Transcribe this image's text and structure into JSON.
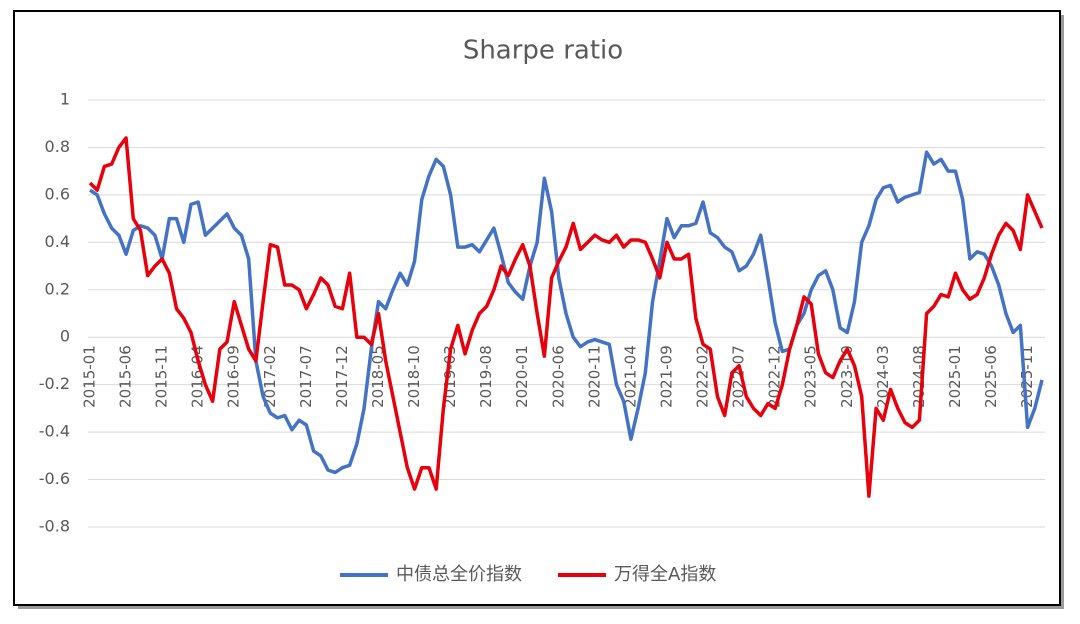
{
  "chart_data": {
    "type": "line",
    "title": "Sharpe ratio",
    "categories": [
      "2015-01",
      null,
      null,
      null,
      null,
      "2015-06",
      null,
      null,
      null,
      null,
      "2015-11",
      null,
      null,
      null,
      null,
      "2016-04",
      null,
      null,
      null,
      null,
      "2016-09",
      null,
      null,
      null,
      null,
      "2017-02",
      null,
      null,
      null,
      null,
      "2017-07",
      null,
      null,
      null,
      null,
      "2017-12",
      null,
      null,
      null,
      null,
      "2018-05",
      null,
      null,
      null,
      null,
      "2018-10",
      null,
      null,
      null,
      null,
      "2019-03",
      null,
      null,
      null,
      null,
      "2019-08",
      null,
      null,
      null,
      null,
      "2020-01",
      null,
      null,
      null,
      null,
      "2020-06",
      null,
      null,
      null,
      null,
      "2020-11",
      null,
      null,
      null,
      null,
      "2021-04",
      null,
      null,
      null,
      null,
      "2021-09",
      null,
      null,
      null,
      null,
      "2022-02",
      null,
      null,
      null,
      null,
      "2022-07",
      null,
      null,
      null,
      null,
      "2022-12",
      null,
      null,
      null,
      null,
      "2023-05",
      null,
      null,
      null,
      null,
      "2023-10",
      null,
      null,
      null,
      null,
      "2024-03",
      null,
      null,
      null,
      null,
      "2024-08",
      null,
      null,
      null,
      null,
      "2025-01",
      null,
      null,
      null,
      null,
      "2025-06",
      null,
      null,
      null,
      null,
      "2025-11",
      null,
      null
    ],
    "series": [
      {
        "name": "中债总全价指数",
        "color": "#4472c4",
        "values": [
          0.62,
          0.6,
          0.52,
          0.46,
          0.43,
          0.35,
          0.45,
          0.47,
          0.46,
          0.43,
          0.33,
          0.5,
          0.5,
          0.4,
          0.56,
          0.57,
          0.43,
          0.46,
          0.49,
          0.52,
          0.46,
          0.43,
          0.33,
          -0.1,
          -0.25,
          -0.32,
          -0.34,
          -0.33,
          -0.39,
          -0.35,
          -0.37,
          -0.48,
          -0.5,
          -0.56,
          -0.57,
          -0.55,
          -0.54,
          -0.45,
          -0.3,
          -0.05,
          0.15,
          0.12,
          0.2,
          0.27,
          0.22,
          0.32,
          0.58,
          0.68,
          0.75,
          0.72,
          0.6,
          0.38,
          0.38,
          0.39,
          0.36,
          0.41,
          0.46,
          0.35,
          0.23,
          0.19,
          0.16,
          0.3,
          0.4,
          0.67,
          0.53,
          0.25,
          0.1,
          0,
          -0.04,
          -0.02,
          -0.01,
          -0.02,
          -0.03,
          -0.2,
          -0.27,
          -0.43,
          -0.3,
          -0.15,
          0.15,
          0.32,
          0.5,
          0.42,
          0.47,
          0.47,
          0.48,
          0.57,
          0.44,
          0.42,
          0.38,
          0.36,
          0.28,
          0.3,
          0.35,
          0.43,
          0.25,
          0.06,
          -0.06,
          -0.05,
          0.05,
          0.1,
          0.2,
          0.26,
          0.28,
          0.2,
          0.04,
          0.02,
          0.15,
          0.4,
          0.47,
          0.58,
          0.63,
          0.64,
          0.57,
          0.59,
          0.6,
          0.61,
          0.78,
          0.73,
          0.75,
          0.7,
          0.7,
          0.58,
          0.33,
          0.36,
          0.35,
          0.3,
          0.22,
          0.1,
          0.02,
          0.05,
          -0.38,
          -0.3,
          -0.18
        ]
      },
      {
        "name": "万得全A指数",
        "color": "#e8000b",
        "values": [
          0.65,
          0.62,
          0.72,
          0.73,
          0.8,
          0.84,
          0.5,
          0.45,
          0.26,
          0.3,
          0.33,
          0.27,
          0.12,
          0.08,
          0.02,
          -0.1,
          -0.2,
          -0.27,
          -0.05,
          -0.02,
          0.15,
          0.05,
          -0.05,
          -0.1,
          0.15,
          0.39,
          0.38,
          0.22,
          0.22,
          0.2,
          0.12,
          0.18,
          0.25,
          0.22,
          0.13,
          0.12,
          0.27,
          0,
          0,
          -0.03,
          0.1,
          -0.1,
          -0.25,
          -0.4,
          -0.55,
          -0.64,
          -0.55,
          -0.55,
          -0.64,
          -0.3,
          -0.05,
          0.05,
          -0.07,
          0.03,
          0.1,
          0.13,
          0.2,
          0.3,
          0.26,
          0.33,
          0.39,
          0.3,
          0.1,
          -0.08,
          0.25,
          0.32,
          0.38,
          0.48,
          0.37,
          0.4,
          0.43,
          0.41,
          0.4,
          0.43,
          0.38,
          0.41,
          0.41,
          0.4,
          0.33,
          0.25,
          0.4,
          0.33,
          0.33,
          0.35,
          0.08,
          -0.03,
          -0.05,
          -0.25,
          -0.33,
          -0.15,
          -0.12,
          -0.25,
          -0.3,
          -0.33,
          -0.28,
          -0.3,
          -0.2,
          -0.05,
          0.05,
          0.17,
          0.14,
          -0.07,
          -0.15,
          -0.17,
          -0.1,
          -0.05,
          -0.12,
          -0.25,
          -0.67,
          -0.3,
          -0.35,
          -0.22,
          -0.3,
          -0.36,
          -0.38,
          -0.35,
          0.1,
          0.13,
          0.18,
          0.17,
          0.27,
          0.2,
          0.16,
          0.18,
          0.25,
          0.35,
          0.43,
          0.48,
          0.45,
          0.37,
          0.6,
          0.53,
          0.46
        ]
      }
    ],
    "ylim": [
      -0.8,
      1
    ],
    "yticks": [
      -0.8,
      -0.6,
      -0.4,
      -0.2,
      0,
      0.2,
      0.4,
      0.6,
      0.8,
      1
    ],
    "grid": true,
    "legend": "bottom"
  }
}
